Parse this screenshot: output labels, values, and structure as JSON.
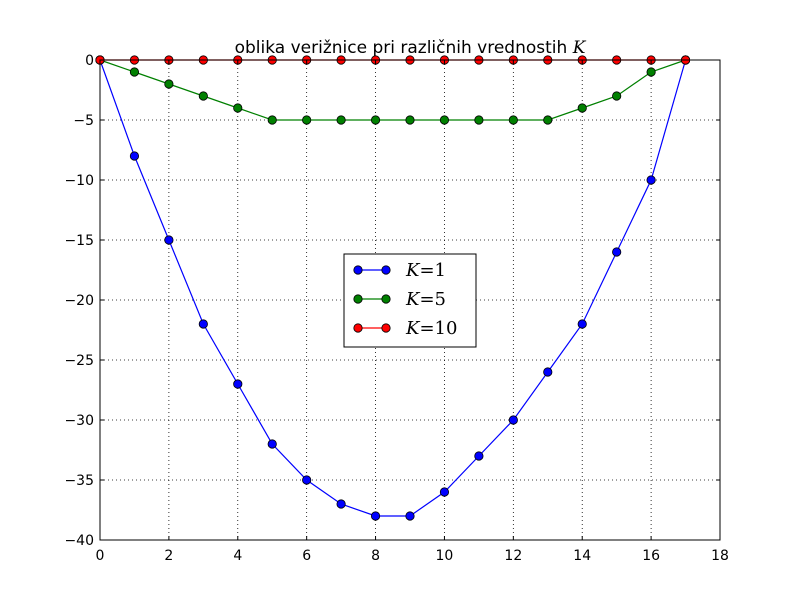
{
  "chart_data": {
    "type": "line",
    "title": "oblika verižnice pri različnih vrednostih ",
    "title_var": "K",
    "xlabel": "",
    "ylabel": "",
    "xlim": [
      0,
      18
    ],
    "ylim": [
      -40,
      0
    ],
    "xticks": [
      0,
      2,
      4,
      6,
      8,
      10,
      12,
      14,
      16,
      18
    ],
    "yticks": [
      0,
      -5,
      -10,
      -15,
      -20,
      -25,
      -30,
      -35,
      -40
    ],
    "xtick_labels": [
      "0",
      "2",
      "4",
      "6",
      "8",
      "10",
      "12",
      "14",
      "16",
      "18"
    ],
    "ytick_labels": [
      "0",
      "−5",
      "−10",
      "−15",
      "−20",
      "−25",
      "−30",
      "−35",
      "−40"
    ],
    "grid": true,
    "legend_position": "center",
    "x": [
      0,
      1,
      2,
      3,
      4,
      5,
      6,
      7,
      8,
      9,
      10,
      11,
      12,
      13,
      14,
      15,
      16,
      17
    ],
    "series": [
      {
        "name": "K=1",
        "legend_var": "K",
        "legend_rest": "=1",
        "color": "#0000ff",
        "values": [
          0,
          -8,
          -15,
          -22,
          -27,
          -32,
          -35,
          -37,
          -38,
          -38,
          -36,
          -33,
          -30,
          -26,
          -22,
          -16,
          -10,
          0
        ]
      },
      {
        "name": "K=5",
        "legend_var": "K",
        "legend_rest": "=5",
        "color": "#008000",
        "values": [
          0,
          -1,
          -2,
          -3,
          -4,
          -5,
          -5,
          -5,
          -5,
          -5,
          -5,
          -5,
          -5,
          -5,
          -4,
          -3,
          -1,
          0
        ]
      },
      {
        "name": "K=10",
        "legend_var": "K",
        "legend_rest": "=10",
        "color": "#ff0000",
        "values": [
          0,
          0,
          0,
          0,
          0,
          0,
          0,
          0,
          0,
          0,
          0,
          0,
          0,
          0,
          0,
          0,
          0,
          0
        ]
      }
    ]
  }
}
